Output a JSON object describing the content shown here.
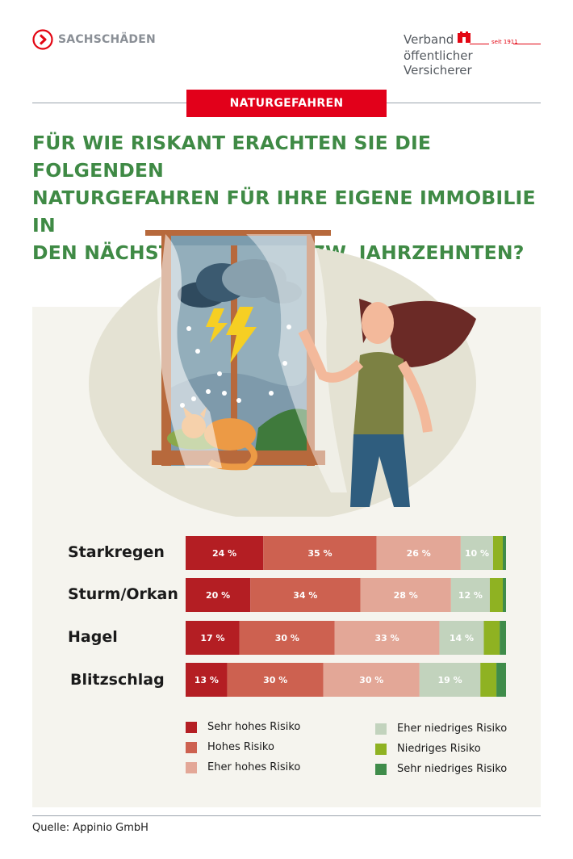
{
  "brand": {
    "label": "SACHSCHÄDEN",
    "accent": "#e30613"
  },
  "publisher": {
    "line1": "Verband",
    "line2": "öffentlicher Versicherer",
    "since": "seit 1911"
  },
  "category_tag": "NATURGEFAHREN",
  "headline": [
    "FÜR WIE RISKANT ERACHTEN SIE DIE FOLGENDEN",
    "NATURGEFAHREN FÜR IHRE EIGENE IMMOBILIE IN",
    "DEN NÄCHSTEN JAHREN BZW. JAHRZEHNTEN?"
  ],
  "source": "Quelle: Appinio GmbH",
  "illustration": {
    "icons": [
      "storm-cloud-icon",
      "lightning-icon",
      "cat-icon",
      "woman-icon",
      "window-icon"
    ]
  },
  "chart_data": {
    "type": "bar",
    "orientation": "horizontal",
    "stacked": true,
    "normalized_percent": true,
    "categories": [
      "Starkregen",
      "Sturm/Orkan",
      "Hagel",
      "Blitzschlag"
    ],
    "series": [
      {
        "name": "Sehr hohes Risiko",
        "color": "#b41e23",
        "values": [
          24,
          20,
          17,
          13
        ],
        "labels": [
          "24 %",
          "20 %",
          "17 %",
          "13 %"
        ]
      },
      {
        "name": "Hohes Risiko",
        "color": "#cd6150",
        "values": [
          35,
          34,
          30,
          30
        ],
        "labels": [
          "35 %",
          "34 %",
          "30 %",
          "30 %"
        ]
      },
      {
        "name": "Eher hohes Risiko",
        "color": "#e3a797",
        "values": [
          26,
          28,
          33,
          30
        ],
        "labels": [
          "26 %",
          "28 %",
          "33 %",
          "30 %"
        ]
      },
      {
        "name": "Eher niedriges Risiko",
        "color": "#c2d3bd",
        "values": [
          10,
          12,
          14,
          19
        ],
        "labels": [
          "10 %",
          "12 %",
          "14 %",
          "19 %"
        ]
      },
      {
        "name": "Niedriges Risiko",
        "color": "#8fb222",
        "values": [
          3,
          4,
          5,
          5
        ],
        "labels": [
          "",
          "",
          "",
          ""
        ]
      },
      {
        "name": "Sehr niedriges Risiko",
        "color": "#3f8c4a",
        "values": [
          1,
          1,
          2,
          3
        ],
        "labels": [
          "",
          "",
          "",
          ""
        ]
      }
    ],
    "legend_position": "bottom",
    "grid": false
  }
}
